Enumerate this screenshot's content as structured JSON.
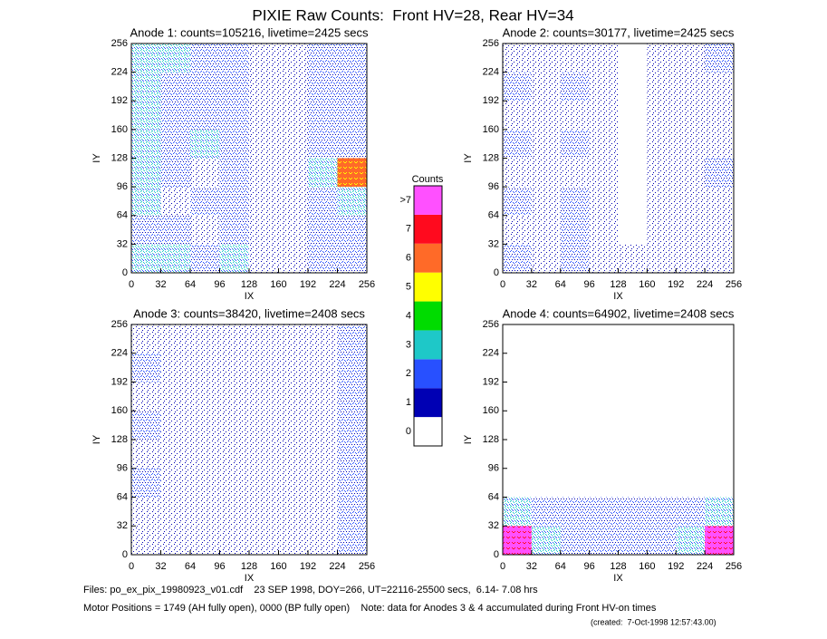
{
  "title": "PIXIE Raw Counts:  Front HV=28, Rear HV=34",
  "colorbar": {
    "title": "Counts",
    "ticks": [
      0,
      1,
      2,
      3,
      4,
      5,
      6,
      7,
      {
        "value": 8,
        "label": ">7"
      }
    ],
    "colors": [
      "#ffffff",
      "#0000b4",
      "#2850ff",
      "#1ec8c8",
      "#00dc00",
      "#ffff00",
      "#ff6a28",
      "#ff0a1e",
      "#ff50ff"
    ]
  },
  "chart_data": [
    {
      "type": "heatmap",
      "title": "Anode 1: counts=105216, livetime=2425 secs",
      "xlabel": "IX",
      "ylabel": "IY",
      "xlim": [
        0,
        256
      ],
      "ylim": [
        0,
        256
      ],
      "xticks": [
        0,
        32,
        64,
        96,
        128,
        160,
        192,
        224,
        256
      ],
      "yticks": [
        0,
        32,
        64,
        96,
        128,
        160,
        192,
        224,
        256
      ],
      "z": [
        [
          3,
          3,
          2,
          3,
          1,
          1,
          2,
          2
        ],
        [
          2,
          2,
          1,
          2,
          1,
          1,
          2,
          2
        ],
        [
          3,
          1,
          2,
          2,
          1,
          1,
          2,
          3
        ],
        [
          3,
          2,
          1,
          2,
          1,
          1,
          3,
          6
        ],
        [
          3,
          2,
          3,
          2,
          1,
          1,
          2,
          2
        ],
        [
          3,
          2,
          2,
          2,
          1,
          1,
          2,
          2
        ],
        [
          3,
          2,
          2,
          2,
          1,
          1,
          2,
          2
        ],
        [
          3,
          3,
          2,
          2,
          1,
          1,
          2,
          2
        ]
      ]
    },
    {
      "type": "heatmap",
      "title": "Anode 2: counts=30177, livetime=2425 secs",
      "xlabel": "IX",
      "ylabel": "IY",
      "xlim": [
        0,
        256
      ],
      "ylim": [
        0,
        256
      ],
      "xticks": [
        0,
        32,
        64,
        96,
        128,
        160,
        192,
        224,
        256
      ],
      "yticks": [
        0,
        32,
        64,
        96,
        128,
        160,
        192,
        224,
        256
      ],
      "z": [
        [
          2,
          1,
          2,
          1,
          1,
          1,
          1,
          1
        ],
        [
          1,
          1,
          2,
          1,
          0,
          1,
          1,
          1
        ],
        [
          2,
          1,
          2,
          1,
          0,
          1,
          1,
          1
        ],
        [
          1,
          1,
          1,
          1,
          0,
          1,
          1,
          2
        ],
        [
          2,
          1,
          2,
          1,
          0,
          1,
          1,
          1
        ],
        [
          1,
          1,
          1,
          1,
          0,
          1,
          1,
          1
        ],
        [
          2,
          1,
          2,
          1,
          0,
          1,
          1,
          1
        ],
        [
          1,
          1,
          1,
          1,
          0,
          1,
          1,
          2
        ]
      ]
    },
    {
      "type": "heatmap",
      "title": "Anode 3: counts=38420, livetime=2408 secs",
      "xlabel": "IX",
      "ylabel": "IY",
      "xlim": [
        0,
        256
      ],
      "ylim": [
        0,
        256
      ],
      "xticks": [
        0,
        32,
        64,
        96,
        128,
        160,
        192,
        224,
        256
      ],
      "yticks": [
        0,
        32,
        64,
        96,
        128,
        160,
        192,
        224,
        256
      ],
      "z": [
        [
          1,
          1,
          1,
          1,
          1,
          1,
          1,
          2
        ],
        [
          1,
          1,
          1,
          1,
          1,
          1,
          1,
          2
        ],
        [
          2,
          1,
          1,
          1,
          1,
          1,
          1,
          2
        ],
        [
          1,
          1,
          1,
          1,
          1,
          1,
          1,
          2
        ],
        [
          2,
          1,
          1,
          1,
          1,
          1,
          1,
          2
        ],
        [
          1,
          1,
          1,
          1,
          1,
          1,
          1,
          2
        ],
        [
          2,
          1,
          1,
          1,
          1,
          1,
          1,
          2
        ],
        [
          1,
          1,
          1,
          1,
          1,
          1,
          1,
          2
        ]
      ]
    },
    {
      "type": "heatmap",
      "title": "Anode 4: counts=64902, livetime=2408 secs",
      "xlabel": "IX",
      "ylabel": "IY",
      "xlim": [
        0,
        256
      ],
      "ylim": [
        0,
        256
      ],
      "xticks": [
        0,
        32,
        64,
        96,
        128,
        160,
        192,
        224,
        256
      ],
      "yticks": [
        0,
        32,
        64,
        96,
        128,
        160,
        192,
        224,
        256
      ],
      "z": [
        [
          8,
          3,
          2,
          2,
          2,
          2,
          3,
          8
        ],
        [
          3,
          2,
          2,
          2,
          2,
          2,
          2,
          3
        ],
        [
          0,
          0,
          0,
          0,
          0,
          0,
          0,
          0
        ],
        [
          0,
          0,
          0,
          0,
          0,
          0,
          0,
          0
        ],
        [
          0,
          0,
          0,
          0,
          0,
          0,
          0,
          0
        ],
        [
          0,
          0,
          0,
          0,
          0,
          0,
          0,
          0
        ],
        [
          0,
          0,
          0,
          0,
          0,
          0,
          0,
          0
        ],
        [
          0,
          0,
          0,
          0,
          0,
          0,
          0,
          0
        ]
      ]
    }
  ],
  "footer": [
    "Files: po_ex_pix_19980923_v01.cdf    23 SEP 1998, DOY=266, UT=22116-25500 secs,  6.14- 7.08 hrs",
    "Motor Positions = 1749 (AH fully open), 0000 (BP fully open)    Note: data for Anodes 3 & 4 accumulated during Front HV-on times",
    "(created:  7-Oct-1998 12:57:43.00)"
  ]
}
